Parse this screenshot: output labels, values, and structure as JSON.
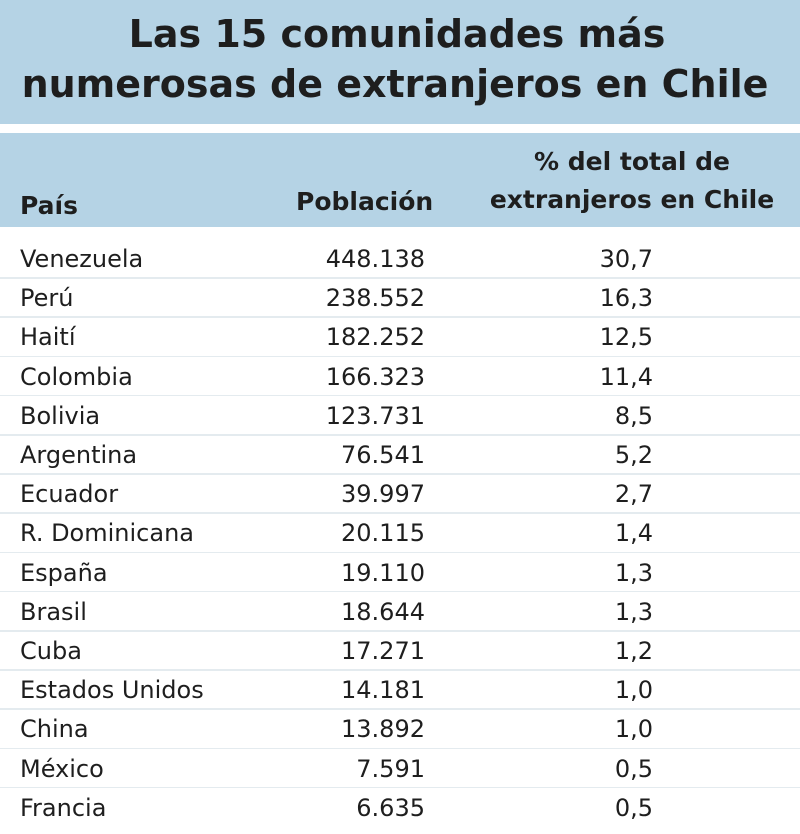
{
  "chart_data": {
    "type": "table",
    "title": "Las 15 comunidades más numerosas de extranjeros en Chile",
    "title_lines": [
      "Las 15 comunidades más",
      "numerosas de extranjeros en Chile"
    ],
    "columns": {
      "country": "País",
      "population": "Población",
      "share_lines": [
        "% del total de",
        "extranjeros en Chile"
      ]
    },
    "rows": [
      {
        "country": "Venezuela",
        "population": "448.138",
        "share": "30,7"
      },
      {
        "country": "Perú",
        "population": "238.552",
        "share": "16,3"
      },
      {
        "country": "Haití",
        "population": "182.252",
        "share": "12,5"
      },
      {
        "country": "Colombia",
        "population": "166.323",
        "share": "11,4"
      },
      {
        "country": "Bolivia",
        "population": "123.731",
        "share": "8,5"
      },
      {
        "country": "Argentina",
        "population": "76.541",
        "share": "5,2"
      },
      {
        "country": "Ecuador",
        "population": "39.997",
        "share": "2,7"
      },
      {
        "country": "R. Dominicana",
        "population": "20.115",
        "share": "1,4"
      },
      {
        "country": "España",
        "population": "19.110",
        "share": "1,3"
      },
      {
        "country": "Brasil",
        "population": "18.644",
        "share": "1,3"
      },
      {
        "country": "Cuba",
        "population": "17.271",
        "share": "1,2"
      },
      {
        "country": "Estados Unidos",
        "population": "14.181",
        "share": "1,0"
      },
      {
        "country": "China",
        "population": "13.892",
        "share": "1,0"
      },
      {
        "country": "México",
        "population": "7.591",
        "share": "0,5"
      },
      {
        "country": "Francia",
        "population": "6.635",
        "share": "0,5"
      }
    ]
  },
  "colors": {
    "header_band": "#b5d3e5",
    "background": "#ffffff",
    "text": "#1e1e1e"
  }
}
